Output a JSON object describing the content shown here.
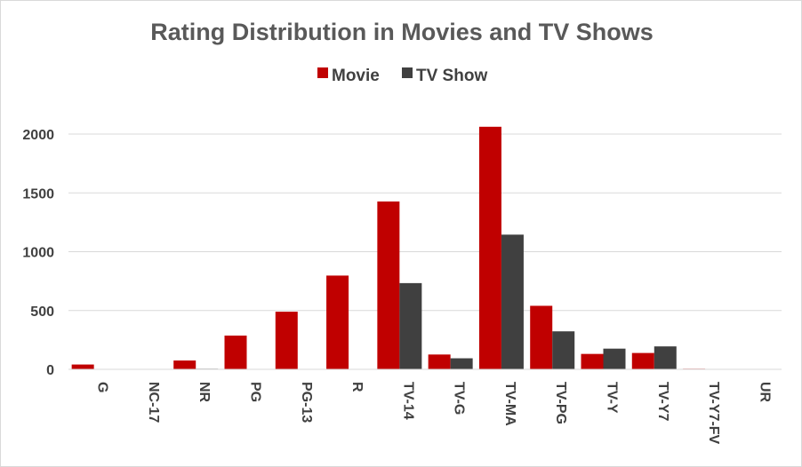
{
  "chart_data": {
    "type": "bar",
    "title": "Rating Distribution in Movies and TV Shows",
    "categories": [
      "G",
      "NC-17",
      "NR",
      "PG",
      "PG-13",
      "R",
      "TV-14",
      "TV-G",
      "TV-MA",
      "TV-PG",
      "TV-Y",
      "TV-Y7",
      "TV-Y7-FV",
      "UR"
    ],
    "series": [
      {
        "name": "Movie",
        "color": "#c00000",
        "values": [
          41,
          3,
          75,
          287,
          490,
          797,
          1427,
          126,
          2062,
          540,
          131,
          139,
          5,
          3
        ]
      },
      {
        "name": "TV Show",
        "color": "#404040",
        "values": [
          2,
          0,
          5,
          0,
          0,
          2,
          733,
          94,
          1145,
          323,
          176,
          195,
          1,
          0
        ]
      }
    ],
    "yticks": [
      0,
      500,
      1000,
      1500,
      2000
    ],
    "ylim": [
      0,
      2100
    ],
    "grid": true,
    "legend": "top-center",
    "xlabel": "",
    "ylabel": ""
  }
}
